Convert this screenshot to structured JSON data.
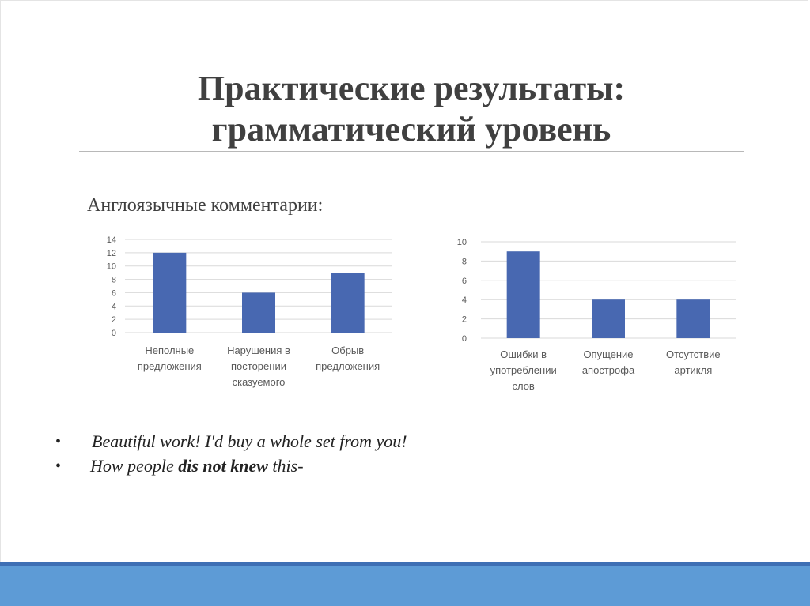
{
  "slide": {
    "title_line1": "Практические результаты:",
    "title_line2": "грамматический уровень",
    "subtitle": "Англоязычные комментарии:"
  },
  "bullets": [
    {
      "dot": "•",
      "text": "Beautiful work! I'd buy a whole set from you!"
    },
    {
      "dot": "•",
      "pre": "How people ",
      "bold": "dis not knew",
      "post": " this-"
    }
  ],
  "colors": {
    "bar": "#4868b1",
    "grid": "#d9d9d9",
    "title": "#404040",
    "band": "#5d9bd6",
    "band_line": "#3e6fb4"
  },
  "chart_data": [
    {
      "type": "bar",
      "categories": [
        [
          "Неполные",
          "предложения"
        ],
        [
          "Нарушения в",
          "посторении",
          "сказуемого"
        ],
        [
          "Обрыв",
          "предложения"
        ]
      ],
      "values": [
        12,
        6,
        9
      ],
      "ylim": [
        0,
        14
      ],
      "yticks": [
        0,
        2,
        4,
        6,
        8,
        10,
        12,
        14
      ],
      "grid": true,
      "legend": "none"
    },
    {
      "type": "bar",
      "categories": [
        [
          "Ошибки в",
          "употреблении",
          "слов"
        ],
        [
          "Опущение",
          "апострофа"
        ],
        [
          "Отсутствие",
          "артикля"
        ]
      ],
      "values": [
        9,
        4,
        4
      ],
      "ylim": [
        0,
        10
      ],
      "yticks": [
        0,
        2,
        4,
        6,
        8,
        10
      ],
      "grid": true,
      "legend": "none"
    }
  ]
}
